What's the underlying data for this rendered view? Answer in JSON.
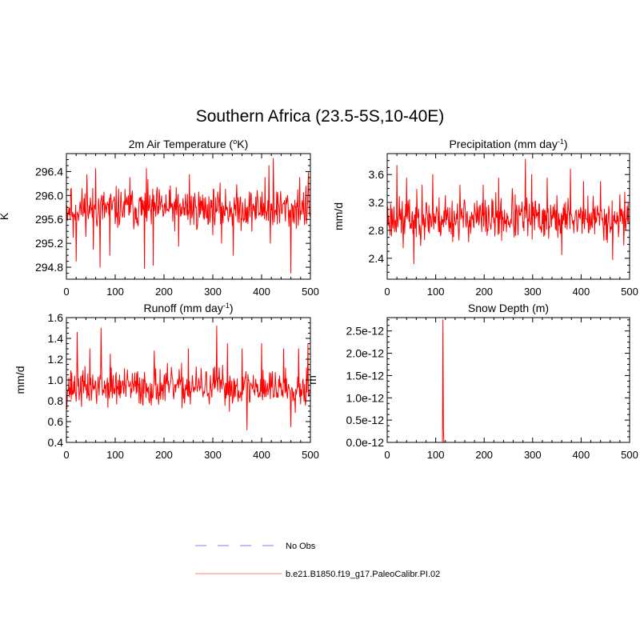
{
  "figure": {
    "title": "Southern Africa (23.5-5S,10-40E)"
  },
  "chart_data": [
    {
      "type": "line",
      "title": "2m Air Temperature (oK)",
      "title_parts": {
        "pre": "2m Air Temperature (",
        "sup": "o",
        "post": "K)"
      },
      "xlabel": "",
      "ylabel": "K",
      "xlim": [
        0,
        500
      ],
      "ylim": [
        294.6,
        296.7
      ],
      "xticks": [
        0,
        100,
        200,
        300,
        400,
        500
      ],
      "yticks": [
        294.8,
        295.2,
        295.6,
        296.0,
        296.4
      ],
      "ytick_labels": [
        "294.8",
        "295.2",
        "295.6",
        "296.0",
        "296.4"
      ],
      "series": [
        {
          "name": "b.e21.B1850.f19_g17.PaleoCalibr.PI.02",
          "color": "#ff0000",
          "n": 500,
          "mean": 295.78,
          "spread": 0.17,
          "seed": 11,
          "spikes": [
            [
              9,
              296.1
            ],
            [
              14,
              295.3
            ],
            [
              20,
              294.9
            ],
            [
              42,
              296.35
            ],
            [
              55,
              295.1
            ],
            [
              60,
              296.45
            ],
            [
              69,
              294.8
            ],
            [
              89,
              295.0
            ],
            [
              130,
              296.3
            ],
            [
              160,
              294.78
            ],
            [
              164,
              296.45
            ],
            [
              178,
              294.83
            ],
            [
              230,
              295.15
            ],
            [
              252,
              296.35
            ],
            [
              318,
              295.2
            ],
            [
              342,
              295.0
            ],
            [
              407,
              296.3
            ],
            [
              415,
              296.5
            ],
            [
              418,
              295.2
            ],
            [
              424,
              296.62
            ],
            [
              433,
              296.05
            ],
            [
              460,
              294.7
            ],
            [
              478,
              296.3
            ],
            [
              496,
              296.4
            ]
          ]
        }
      ]
    },
    {
      "type": "line",
      "title": "Precipitation (mm day-1)",
      "title_parts": {
        "pre": "Precipitation (mm day",
        "sup": "-1",
        "post": ")"
      },
      "xlabel": "",
      "ylabel": "mm/d",
      "xlim": [
        0,
        500
      ],
      "ylim": [
        2.1,
        3.9
      ],
      "xticks": [
        0,
        100,
        200,
        300,
        400,
        500
      ],
      "yticks": [
        2.4,
        2.8,
        3.2,
        3.6
      ],
      "ytick_labels": [
        "2.4",
        "2.8",
        "3.2",
        "3.6"
      ],
      "series": [
        {
          "name": "b.e21.B1850.f19_g17.PaleoCalibr.PI.02",
          "color": "#ff0000",
          "n": 500,
          "mean": 2.97,
          "spread": 0.15,
          "seed": 23,
          "spikes": [
            [
              20,
              3.73
            ],
            [
              33,
              2.55
            ],
            [
              40,
              3.55
            ],
            [
              55,
              2.32
            ],
            [
              72,
              3.45
            ],
            [
              94,
              3.6
            ],
            [
              120,
              3.3
            ],
            [
              150,
              3.45
            ],
            [
              198,
              3.45
            ],
            [
              230,
              3.55
            ],
            [
              258,
              3.4
            ],
            [
              285,
              3.82
            ],
            [
              298,
              3.6
            ],
            [
              330,
              3.55
            ],
            [
              360,
              2.45
            ],
            [
              378,
              3.68
            ],
            [
              405,
              3.5
            ],
            [
              440,
              3.5
            ],
            [
              465,
              2.38
            ],
            [
              490,
              3.35
            ]
          ]
        }
      ]
    },
    {
      "type": "line",
      "title": "Runoff (mm day-1)",
      "title_parts": {
        "pre": "Runoff (mm day",
        "sup": "-1",
        "post": ")"
      },
      "xlabel": "",
      "ylabel": "mm/d",
      "xlim": [
        0,
        500
      ],
      "ylim": [
        0.4,
        1.6
      ],
      "xticks": [
        0,
        100,
        200,
        300,
        400,
        500
      ],
      "yticks": [
        0.4,
        0.6,
        0.8,
        1.0,
        1.2,
        1.4,
        1.6
      ],
      "ytick_labels": [
        "0.4",
        "0.6",
        "0.8",
        "1.0",
        "1.2",
        "1.4",
        "1.6"
      ],
      "series": [
        {
          "name": "b.e21.B1850.f19_g17.PaleoCalibr.PI.02",
          "color": "#ff0000",
          "n": 500,
          "mean": 0.93,
          "spread": 0.09,
          "seed": 37,
          "spikes": [
            [
              22,
              1.46
            ],
            [
              48,
              1.3
            ],
            [
              71,
              1.5
            ],
            [
              90,
              1.25
            ],
            [
              180,
              1.28
            ],
            [
              250,
              1.3
            ],
            [
              308,
              1.52
            ],
            [
              330,
              1.35
            ],
            [
              360,
              1.3
            ],
            [
              370,
              0.52
            ],
            [
              400,
              1.35
            ],
            [
              445,
              1.3
            ],
            [
              460,
              0.55
            ],
            [
              476,
              1.3
            ],
            [
              495,
              1.35
            ]
          ]
        }
      ]
    },
    {
      "type": "line",
      "title": "Snow Depth (m)",
      "title_parts": {
        "pre": "Snow Depth (m)",
        "sup": "",
        "post": ""
      },
      "xlabel": "",
      "ylabel": "m",
      "xlim": [
        0,
        500
      ],
      "ylim": [
        0,
        2.8e-12
      ],
      "xticks": [
        0,
        100,
        200,
        300,
        400,
        500
      ],
      "yticks": [
        0,
        5e-13,
        1e-12,
        1.5e-12,
        2e-12,
        2.5e-12
      ],
      "ytick_labels": [
        "0.0e-12",
        "0.5e-12",
        "1.0e-12",
        "1.5e-12",
        "2.0e-12",
        "2.5e-12"
      ],
      "series": [
        {
          "name": "b.e21.B1850.f19_g17.PaleoCalibr.PI.02",
          "color": "#ff0000",
          "points": [
            [
              0,
              0
            ],
            [
              114,
              0
            ],
            [
              115,
              2.75e-12
            ],
            [
              116,
              3e-13
            ],
            [
              117,
              0
            ],
            [
              500,
              0
            ]
          ]
        }
      ]
    }
  ],
  "legend": {
    "placement": "bottom-center",
    "items": [
      {
        "label": "No Obs",
        "color": "#9999ff",
        "style": "dashed"
      },
      {
        "label": "b.e21.B1850.f19_g17.PaleoCalibr.PI.02",
        "color": "#ff9999",
        "style": "solid"
      }
    ]
  }
}
